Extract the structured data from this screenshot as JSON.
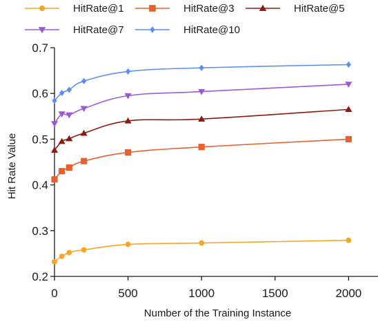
{
  "chart_data": {
    "type": "line",
    "title": "",
    "xlabel": "Number of the Training Instance",
    "ylabel": "Hit Rate Value",
    "x": [
      0,
      50,
      100,
      200,
      500,
      1000,
      2000
    ],
    "xlim": [
      0,
      2200
    ],
    "ylim": [
      0.2,
      0.7
    ],
    "xticks": [
      0,
      500,
      1000,
      1500,
      2000
    ],
    "yticks": [
      0.2,
      0.3,
      0.4,
      0.5,
      0.6,
      0.7
    ],
    "xtick_labels": [
      "0",
      "500",
      "1000",
      "1500",
      "2000"
    ],
    "ytick_labels": [
      "0.2",
      "0.3",
      "0.4",
      "0.5",
      "0.6",
      "0.7"
    ],
    "grid": false,
    "legend_position": "top",
    "series": [
      {
        "name": "HitRate@1",
        "color": "#f5a623",
        "marker": "circle",
        "values": [
          0.232,
          0.244,
          0.252,
          0.258,
          0.27,
          0.273,
          0.279
        ]
      },
      {
        "name": "HitRate@3",
        "color": "#e8602c",
        "marker": "square",
        "values": [
          0.412,
          0.43,
          0.438,
          0.452,
          0.471,
          0.483,
          0.5
        ]
      },
      {
        "name": "HitRate@5",
        "color": "#8b1a10",
        "marker": "triangle-up",
        "values": [
          0.476,
          0.495,
          0.501,
          0.513,
          0.54,
          0.544,
          0.565
        ]
      },
      {
        "name": "HitRate@7",
        "color": "#9b59d6",
        "marker": "triangle-down",
        "values": [
          0.534,
          0.555,
          0.553,
          0.567,
          0.595,
          0.604,
          0.62
        ]
      },
      {
        "name": "HitRate@10",
        "color": "#5b8ff0",
        "marker": "diamond",
        "values": [
          0.584,
          0.601,
          0.608,
          0.627,
          0.648,
          0.656,
          0.663
        ]
      }
    ]
  }
}
